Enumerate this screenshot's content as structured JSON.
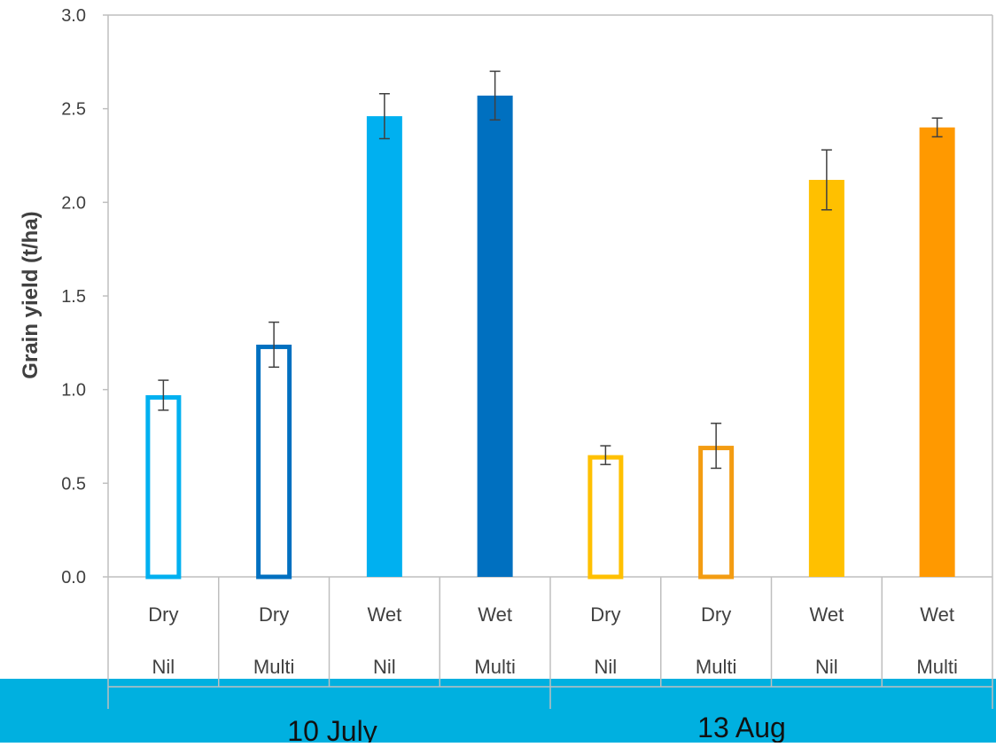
{
  "chart_data": {
    "type": "bar",
    "ylabel": "Grain yield (t/ha)",
    "ylim": [
      0,
      3.0
    ],
    "yticks": [
      "0.0",
      "0.5",
      "1.0",
      "1.5",
      "2.0",
      "2.5",
      "3.0"
    ],
    "y_tick_values": [
      0,
      0.5,
      1.0,
      1.5,
      2.0,
      2.5,
      3.0
    ],
    "grid": false,
    "groups": [
      "10 July",
      "13 Aug"
    ],
    "bars": [
      {
        "line1": "Dry",
        "line2": "Nil",
        "group": "10 July",
        "value": 0.97,
        "error": 0.08,
        "style": "outline",
        "color": "#00b0f0"
      },
      {
        "line1": "Dry",
        "line2": "Multi",
        "group": "10 July",
        "value": 1.24,
        "error": 0.12,
        "style": "outline",
        "color": "#0070c0"
      },
      {
        "line1": "Wet",
        "line2": "Nil",
        "group": "10 July",
        "value": 2.46,
        "error": 0.12,
        "style": "filled",
        "color": "#00b0f0"
      },
      {
        "line1": "Wet",
        "line2": "Multi",
        "group": "10 July",
        "value": 2.57,
        "error": 0.13,
        "style": "filled",
        "color": "#0070c0"
      },
      {
        "line1": "Dry",
        "line2": "Nil",
        "group": "13 Aug",
        "value": 0.65,
        "error": 0.05,
        "style": "outline",
        "color": "#ffc000"
      },
      {
        "line1": "Dry",
        "line2": "Multi",
        "group": "13 Aug",
        "value": 0.7,
        "error": 0.12,
        "style": "outline",
        "color": "#f39c12"
      },
      {
        "line1": "Wet",
        "line2": "Nil",
        "group": "13 Aug",
        "value": 2.12,
        "error": 0.16,
        "style": "filled",
        "color": "#ffc000"
      },
      {
        "line1": "Wet",
        "line2": "Multi",
        "group": "13 Aug",
        "value": 2.4,
        "error": 0.05,
        "style": "filled",
        "color": "#ff9900"
      }
    ],
    "colors": {
      "axis": "#bfbfbf",
      "text": "#404040",
      "error_bar": "#404040",
      "banner": "#00b0e0",
      "banner_text": "#111111"
    }
  }
}
